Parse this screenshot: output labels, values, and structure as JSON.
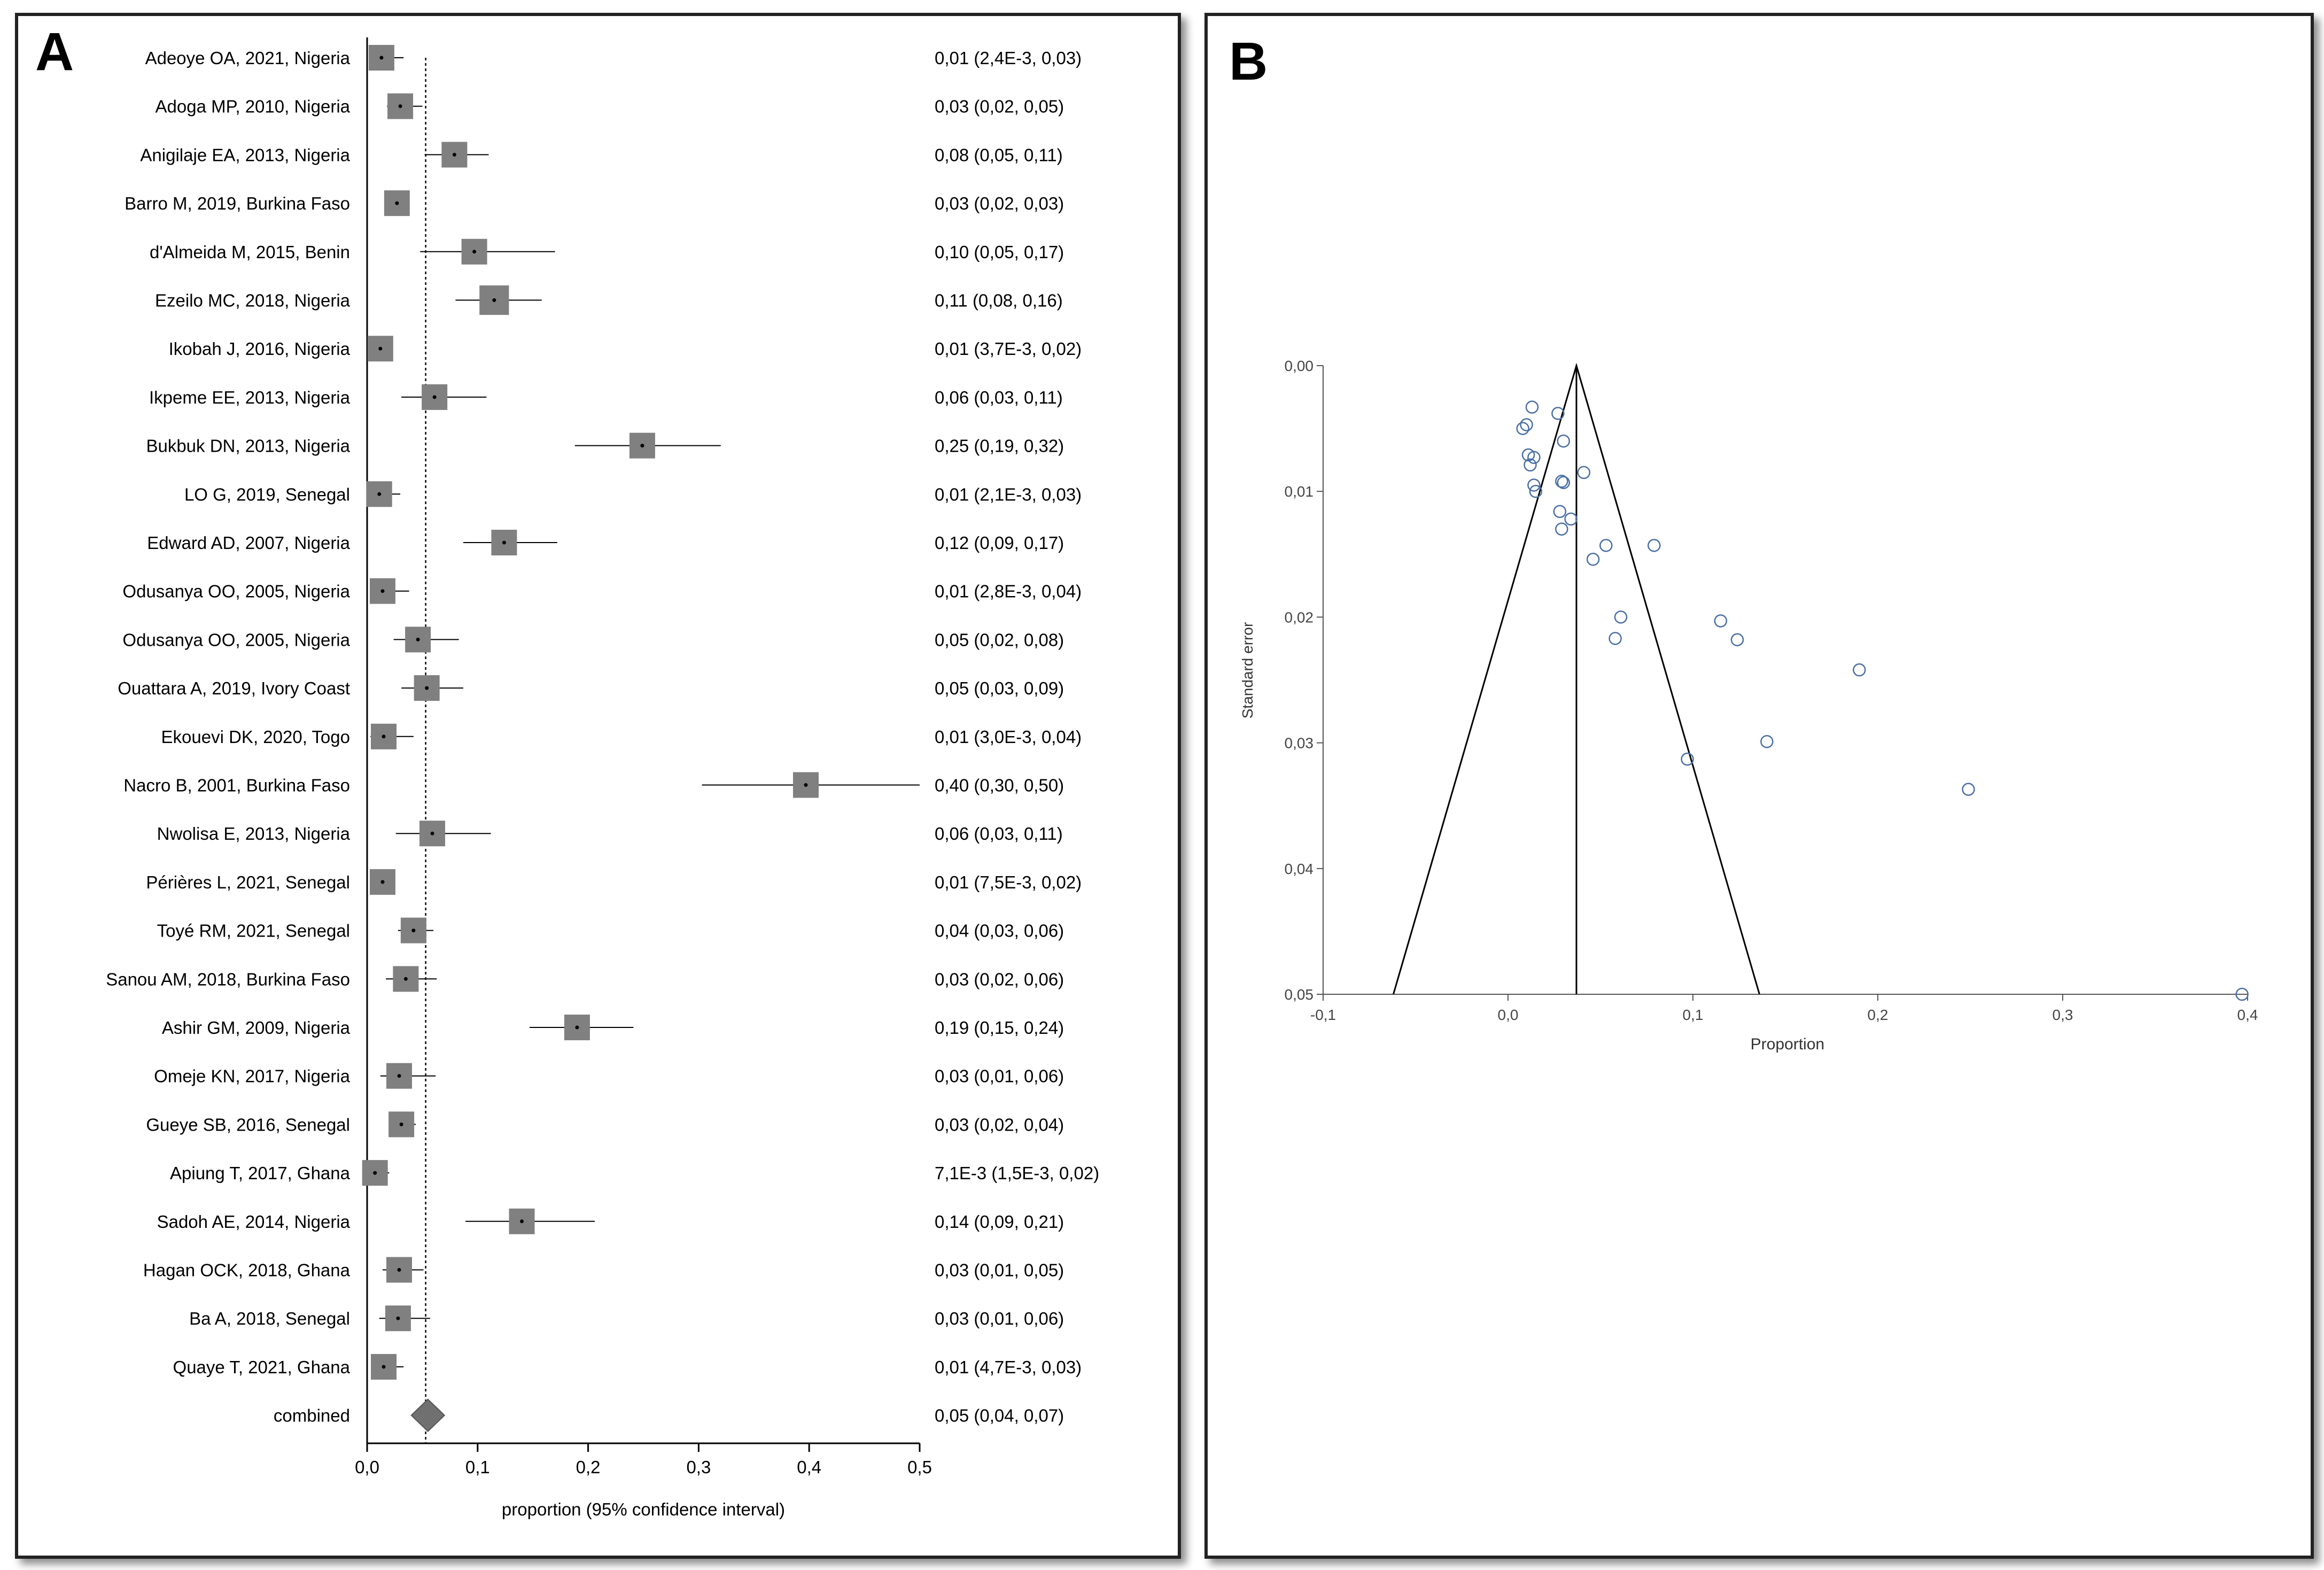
{
  "panel_a": {
    "letter": "A"
  },
  "panel_b": {
    "letter": "B"
  },
  "chart_data": [
    {
      "type": "forest",
      "title": "",
      "xlabel": "proportion (95% confidence interval)",
      "xlim": [
        0.0,
        0.5
      ],
      "xticks": [
        0.0,
        0.1,
        0.2,
        0.3,
        0.4,
        0.5
      ],
      "xtick_labels": [
        "0,0",
        "0,1",
        "0,2",
        "0,3",
        "0,4",
        "0,5"
      ],
      "reference_line": 0.053,
      "studies": [
        {
          "label": "Adeoye OA, 2021, Nigeria",
          "estimate": 0.013,
          "lower": 0.0024,
          "upper": 0.033,
          "ci_text": "0,01 (2,4E-3, 0,03)",
          "weight": 1.0
        },
        {
          "label": "Adoga MP, 2010, Nigeria",
          "estimate": 0.03,
          "lower": 0.018,
          "upper": 0.05,
          "ci_text": "0,03 (0,02, 0,05)",
          "weight": 1.0
        },
        {
          "label": "Anigilaje EA, 2013, Nigeria",
          "estimate": 0.079,
          "lower": 0.052,
          "upper": 0.11,
          "ci_text": "0,08 (0,05, 0,11)",
          "weight": 1.0
        },
        {
          "label": "Barro M, 2019, Burkina Faso",
          "estimate": 0.027,
          "lower": 0.018,
          "upper": 0.035,
          "ci_text": "0,03 (0,02, 0,03)",
          "weight": 1.0
        },
        {
          "label": "d'Almeida M, 2015, Benin",
          "estimate": 0.097,
          "lower": 0.048,
          "upper": 0.17,
          "ci_text": "0,10 (0,05, 0,17)",
          "weight": 1.0
        },
        {
          "label": "Ezeilo MC, 2018, Nigeria",
          "estimate": 0.115,
          "lower": 0.08,
          "upper": 0.158,
          "ci_text": "0,11 (0,08, 0,16)",
          "weight": 1.15
        },
        {
          "label": "Ikobah  J, 2016, Nigeria",
          "estimate": 0.012,
          "lower": 0.0037,
          "upper": 0.022,
          "ci_text": "0,01 (3,7E-3, 0,02)",
          "weight": 1.0
        },
        {
          "label": "Ikpeme EE, 2013, Nigeria",
          "estimate": 0.061,
          "lower": 0.031,
          "upper": 0.108,
          "ci_text": "0,06 (0,03, 0,11)",
          "weight": 1.0
        },
        {
          "label": "Bukbuk DN, 2013, Nigeria",
          "estimate": 0.249,
          "lower": 0.188,
          "upper": 0.32,
          "ci_text": "0,25 (0,19, 0,32)",
          "weight": 1.0
        },
        {
          "label": "LO G, 2019, Senegal",
          "estimate": 0.011,
          "lower": 0.0021,
          "upper": 0.03,
          "ci_text": "0,01 (2,1E-3, 0,03)",
          "weight": 1.0
        },
        {
          "label": "Edward AD, 2007, Nigeria",
          "estimate": 0.124,
          "lower": 0.087,
          "upper": 0.172,
          "ci_text": "0,12 (0,09, 0,17)",
          "weight": 1.0
        },
        {
          "label": "Odusanya OO, 2005, Nigeria",
          "estimate": 0.014,
          "lower": 0.0028,
          "upper": 0.038,
          "ci_text": "0,01 (2,8E-3, 0,04)",
          "weight": 1.0
        },
        {
          "label": "Odusanya OO, 2005, Nigeria",
          "estimate": 0.046,
          "lower": 0.024,
          "upper": 0.083,
          "ci_text": "0,05 (0,02, 0,08)",
          "weight": 1.0
        },
        {
          "label": "Ouattara A, 2019, Ivory Coast",
          "estimate": 0.054,
          "lower": 0.031,
          "upper": 0.087,
          "ci_text": "0,05 (0,03, 0,09)",
          "weight": 1.0
        },
        {
          "label": "Ekouevi DK, 2020,  Togo",
          "estimate": 0.015,
          "lower": 0.003,
          "upper": 0.042,
          "ci_text": "0,01 (3,0E-3, 0,04)",
          "weight": 1.0
        },
        {
          "label": "Nacro B, 2001, Burkina Faso",
          "estimate": 0.397,
          "lower": 0.303,
          "upper": 0.5,
          "ci_text": "0,40 (0,30, 0,50)",
          "weight": 1.0
        },
        {
          "label": "Nwolisa E, 2013, Nigeria",
          "estimate": 0.059,
          "lower": 0.026,
          "upper": 0.112,
          "ci_text": "0,06 (0,03, 0,11)",
          "weight": 1.0
        },
        {
          "label": "Périères L, 2021, Senegal",
          "estimate": 0.014,
          "lower": 0.0075,
          "upper": 0.024,
          "ci_text": "0,01 (7,5E-3, 0,02)",
          "weight": 1.0
        },
        {
          "label": "Toyé RM, 2021, Senegal",
          "estimate": 0.042,
          "lower": 0.028,
          "upper": 0.06,
          "ci_text": "0,04 (0,03, 0,06)",
          "weight": 1.0
        },
        {
          "label": "Sanou AM, 2018, Burkina Faso",
          "estimate": 0.035,
          "lower": 0.017,
          "upper": 0.063,
          "ci_text": "0,03 (0,02, 0,06)",
          "weight": 1.0
        },
        {
          "label": "Ashir GM, 2009, Nigeria",
          "estimate": 0.19,
          "lower": 0.147,
          "upper": 0.241,
          "ci_text": "0,19 (0,15, 0,24)",
          "weight": 1.0
        },
        {
          "label": "Omeje KN, 2017,  Nigeria",
          "estimate": 0.029,
          "lower": 0.012,
          "upper": 0.062,
          "ci_text": "0,03 (0,01, 0,06)",
          "weight": 1.0
        },
        {
          "label": "Gueye SB, 2016, Senegal",
          "estimate": 0.031,
          "lower": 0.02,
          "upper": 0.044,
          "ci_text": "0,03 (0,02, 0,04)",
          "weight": 1.0
        },
        {
          "label": "Apiung T, 2017, Ghana",
          "estimate": 0.0071,
          "lower": 0.0015,
          "upper": 0.02,
          "ci_text": "7,1E-3 (1,5E-3, 0,02)",
          "weight": 1.0
        },
        {
          "label": "Sadoh AE, 2014, Nigeria",
          "estimate": 0.14,
          "lower": 0.089,
          "upper": 0.206,
          "ci_text": "0,14 (0,09, 0,21)",
          "weight": 1.0
        },
        {
          "label": "Hagan OCK, 2018, Ghana",
          "estimate": 0.029,
          "lower": 0.014,
          "upper": 0.051,
          "ci_text": "0,03 (0,01, 0,05)",
          "weight": 1.0
        },
        {
          "label": "Ba A, 2018, Senegal",
          "estimate": 0.028,
          "lower": 0.011,
          "upper": 0.057,
          "ci_text": "0,03 (0,01, 0,06)",
          "weight": 1.0
        },
        {
          "label": "Quaye T, 2021, Ghana",
          "estimate": 0.015,
          "lower": 0.0047,
          "upper": 0.033,
          "ci_text": "0,01 (4,7E-3, 0,03)",
          "weight": 1.0
        }
      ],
      "combined": {
        "label": "combined",
        "estimate": 0.055,
        "lower": 0.04,
        "upper": 0.07,
        "ci_text": "0,05 (0,04, 0,07)"
      }
    },
    {
      "type": "scatter",
      "subtype": "funnel",
      "title": "",
      "xlabel": "Proportion",
      "ylabel": "Standard error",
      "xlim": [
        -0.1,
        0.4
      ],
      "ylim": [
        0.0,
        0.05
      ],
      "y_inverted": true,
      "xticks": [
        -0.1,
        0.0,
        0.1,
        0.2,
        0.3,
        0.4
      ],
      "xtick_labels": [
        "-0,1",
        "0,0",
        "0,1",
        "0,2",
        "0,3",
        "0,4"
      ],
      "yticks": [
        0.0,
        0.01,
        0.02,
        0.03,
        0.04,
        0.05
      ],
      "ytick_labels": [
        "0,00",
        "0,01",
        "0,02",
        "0,03",
        "0,04",
        "0,05"
      ],
      "funnel": {
        "center": 0.037,
        "apex_se": 0.0,
        "base_se": 0.05,
        "left_at_base": -0.062,
        "right_at_base": 0.136
      },
      "points": [
        {
          "x": 0.013,
          "y": 0.0033
        },
        {
          "x": 0.027,
          "y": 0.0038
        },
        {
          "x": 0.01,
          "y": 0.0047
        },
        {
          "x": 0.008,
          "y": 0.005
        },
        {
          "x": 0.03,
          "y": 0.006
        },
        {
          "x": 0.011,
          "y": 0.0071
        },
        {
          "x": 0.014,
          "y": 0.0073
        },
        {
          "x": 0.012,
          "y": 0.0079
        },
        {
          "x": 0.041,
          "y": 0.0085
        },
        {
          "x": 0.029,
          "y": 0.0092
        },
        {
          "x": 0.03,
          "y": 0.0093
        },
        {
          "x": 0.014,
          "y": 0.0095
        },
        {
          "x": 0.015,
          "y": 0.01
        },
        {
          "x": 0.028,
          "y": 0.0116
        },
        {
          "x": 0.034,
          "y": 0.0122
        },
        {
          "x": 0.029,
          "y": 0.013
        },
        {
          "x": 0.053,
          "y": 0.0143
        },
        {
          "x": 0.079,
          "y": 0.0143
        },
        {
          "x": 0.046,
          "y": 0.0154
        },
        {
          "x": 0.061,
          "y": 0.02
        },
        {
          "x": 0.115,
          "y": 0.0203
        },
        {
          "x": 0.058,
          "y": 0.0217
        },
        {
          "x": 0.124,
          "y": 0.0218
        },
        {
          "x": 0.19,
          "y": 0.0242
        },
        {
          "x": 0.14,
          "y": 0.0299
        },
        {
          "x": 0.097,
          "y": 0.0313
        },
        {
          "x": 0.249,
          "y": 0.0337
        },
        {
          "x": 0.397,
          "y": 0.05
        }
      ]
    }
  ]
}
